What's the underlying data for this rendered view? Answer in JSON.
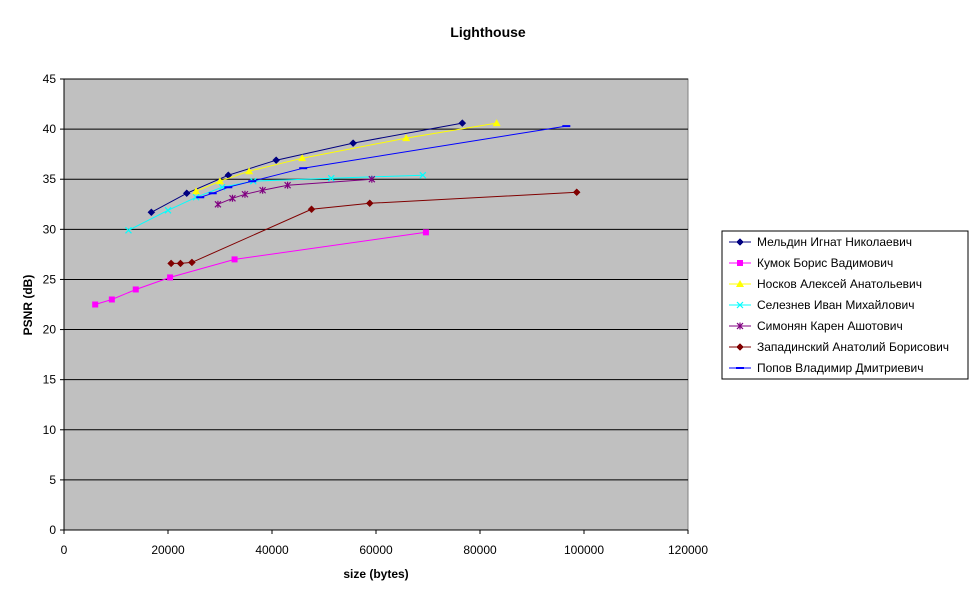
{
  "chart_data": {
    "type": "line",
    "title": "Lighthouse",
    "xlabel": "size (bytes)",
    "ylabel": "PSNR (dB)",
    "xlim": [
      0,
      120000
    ],
    "ylim": [
      0,
      45
    ],
    "xticks": [
      0,
      20000,
      40000,
      60000,
      80000,
      100000,
      120000
    ],
    "yticks": [
      0,
      5,
      10,
      15,
      20,
      25,
      30,
      35,
      40,
      45
    ],
    "grid": "horizontal",
    "legend": "right",
    "plot_background": "#c0c0c0",
    "series": [
      {
        "name": "Мельдин Игнат Николаевич",
        "color": "#000080",
        "marker": "diamond",
        "points": [
          [
            16800,
            31.7
          ],
          [
            23600,
            33.6
          ],
          [
            31600,
            35.4
          ],
          [
            40800,
            36.9
          ],
          [
            55600,
            38.6
          ],
          [
            76600,
            40.6
          ]
        ]
      },
      {
        "name": "Кумок Борис Вадимович",
        "color": "#ff00ff",
        "marker": "square",
        "points": [
          [
            6000,
            22.5
          ],
          [
            9200,
            23.0
          ],
          [
            13800,
            24.0
          ],
          [
            20400,
            25.2
          ],
          [
            32800,
            27.0
          ],
          [
            69600,
            29.7
          ]
        ]
      },
      {
        "name": "Носков Алексей Анатольевич",
        "color": "#ffff00",
        "marker": "triangle",
        "points": [
          [
            25400,
            33.8
          ],
          [
            30000,
            34.8
          ],
          [
            35600,
            35.8
          ],
          [
            45800,
            37.1
          ],
          [
            65800,
            39.1
          ],
          [
            83200,
            40.6
          ]
        ]
      },
      {
        "name": "Селезнев Иван Михайлович",
        "color": "#00ffff",
        "marker": "x",
        "points": [
          [
            12400,
            29.9
          ],
          [
            20000,
            31.9
          ],
          [
            25400,
            33.2
          ],
          [
            30400,
            34.2
          ],
          [
            36400,
            34.8
          ],
          [
            51400,
            35.1
          ],
          [
            69000,
            35.4
          ]
        ]
      },
      {
        "name": "Симонян Карен Ашотович",
        "color": "#800080",
        "marker": "star",
        "points": [
          [
            29600,
            32.5
          ],
          [
            32400,
            33.1
          ],
          [
            34800,
            33.5
          ],
          [
            38200,
            33.9
          ],
          [
            43000,
            34.4
          ],
          [
            59200,
            35.0
          ]
        ]
      },
      {
        "name": "Западинский Анатолий Борисович",
        "color": "#800000",
        "marker": "diamond",
        "points": [
          [
            20600,
            26.6
          ],
          [
            22400,
            26.6
          ],
          [
            24600,
            26.7
          ],
          [
            47600,
            32.0
          ],
          [
            58800,
            32.6
          ],
          [
            98600,
            33.7
          ]
        ]
      },
      {
        "name": "Попов Владимир Дмитриевич",
        "color": "#0000ff",
        "marker": "dash",
        "points": [
          [
            26200,
            33.2
          ],
          [
            28600,
            33.6
          ],
          [
            31600,
            34.2
          ],
          [
            36200,
            34.8
          ],
          [
            46000,
            36.1
          ],
          [
            96600,
            40.3
          ]
        ]
      }
    ]
  }
}
